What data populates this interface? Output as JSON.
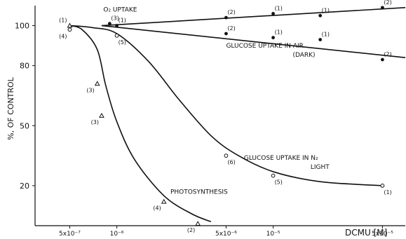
{
  "chart_data": {
    "type": "line",
    "title": "",
    "xlabel": "DCMU [M]",
    "ylabel": "%, OF CONTROL",
    "x_scale": "log",
    "xlim": [
      3e-07,
      7e-05
    ],
    "ylim": [
      0,
      110
    ],
    "x_ticks": [
      {
        "value": 5e-07,
        "label": "5x10⁻⁷"
      },
      {
        "value": 1e-06,
        "label": "10⁻⁶"
      },
      {
        "value": 5e-06,
        "label": "5x10⁻⁶"
      },
      {
        "value": 1e-05,
        "label": "10⁻⁵"
      },
      {
        "value": 5e-05,
        "label": "5x10⁻⁵"
      }
    ],
    "y_ticks": [
      {
        "value": 20,
        "label": "20"
      },
      {
        "value": 50,
        "label": "50"
      },
      {
        "value": 80,
        "label": "80"
      },
      {
        "value": 100,
        "label": "100"
      }
    ],
    "series": [
      {
        "name": "O₂ UPTAKE",
        "label_x": 8.2e-07,
        "label_y": 107,
        "curve": [
          [
            8e-07,
            100
          ],
          [
            7e-05,
            109
          ]
        ],
        "points": [
          {
            "x": 9e-07,
            "y": 101,
            "marker": "dot",
            "n": "(3)"
          },
          {
            "x": 5e-06,
            "y": 104,
            "marker": "dot",
            "n": "(2)"
          },
          {
            "x": 1e-05,
            "y": 106,
            "marker": "dot",
            "n": "(1)"
          },
          {
            "x": 2e-05,
            "y": 105,
            "marker": "dot",
            "n": "(1)"
          },
          {
            "x": 5e-05,
            "y": 109,
            "marker": "dot",
            "n": "(2)"
          }
        ]
      },
      {
        "name": "GLUCOSE UPTAKE IN AIR",
        "note": "(DARK)",
        "label_x": 5e-06,
        "label_y": 89,
        "curve": [
          [
            8e-07,
            100
          ],
          [
            7e-05,
            84
          ]
        ],
        "points": [
          {
            "x": 1e-06,
            "y": 100,
            "marker": "dot",
            "n": "(1)"
          },
          {
            "x": 5e-06,
            "y": 96,
            "marker": "dot",
            "n": "(2)"
          },
          {
            "x": 1e-05,
            "y": 94,
            "marker": "dot",
            "n": "(1)"
          },
          {
            "x": 2e-05,
            "y": 93,
            "marker": "dot",
            "n": "(1)"
          },
          {
            "x": 5e-05,
            "y": 83,
            "marker": "dot",
            "n": "(2)"
          }
        ]
      },
      {
        "name": "GLUCOSE UPTAKE IN N₂",
        "note": "LIGHT",
        "label_x": 6.5e-06,
        "label_y": 33,
        "curve": [
          [
            5e-07,
            100
          ],
          [
            7e-07,
            99
          ],
          [
            1e-06,
            96
          ],
          [
            1.6e-06,
            82
          ],
          [
            2.5e-06,
            63
          ],
          [
            4e-06,
            45
          ],
          [
            6e-06,
            35
          ],
          [
            1e-05,
            27
          ],
          [
            2e-05,
            22
          ],
          [
            5e-05,
            20
          ]
        ],
        "points": [
          {
            "x": 5e-07,
            "y": 98,
            "marker": "circle",
            "n": "(4)"
          },
          {
            "x": 1e-06,
            "y": 95,
            "marker": "circle",
            "n": "(5)"
          },
          {
            "x": 5e-06,
            "y": 35,
            "marker": "circle",
            "n": "(6)"
          },
          {
            "x": 1e-05,
            "y": 25,
            "marker": "circle",
            "n": "(5)"
          },
          {
            "x": 5e-05,
            "y": 20,
            "marker": "circle",
            "n": "(1)"
          }
        ]
      },
      {
        "name": "PHOTOSYNTHESIS",
        "label_x": 2.2e-06,
        "label_y": 16,
        "curve": [
          [
            5e-07,
            100
          ],
          [
            6e-07,
            98
          ],
          [
            7.5e-07,
            88
          ],
          [
            8.5e-07,
            70
          ],
          [
            1e-06,
            52
          ],
          [
            1.3e-06,
            33
          ],
          [
            2e-06,
            15
          ],
          [
            3e-06,
            6
          ],
          [
            4e-06,
            2
          ]
        ],
        "points": [
          {
            "x": 5e-07,
            "y": 100,
            "marker": "triangle",
            "n": "(1)"
          },
          {
            "x": 7.5e-07,
            "y": 71,
            "marker": "triangle",
            "n": "(3)"
          },
          {
            "x": 8e-07,
            "y": 55,
            "marker": "triangle",
            "n": "(3)"
          },
          {
            "x": 2e-06,
            "y": 12,
            "marker": "triangle",
            "n": "(4)"
          },
          {
            "x": 3.3e-06,
            "y": 1,
            "marker": "triangle",
            "n": "(2)"
          }
        ]
      }
    ]
  }
}
